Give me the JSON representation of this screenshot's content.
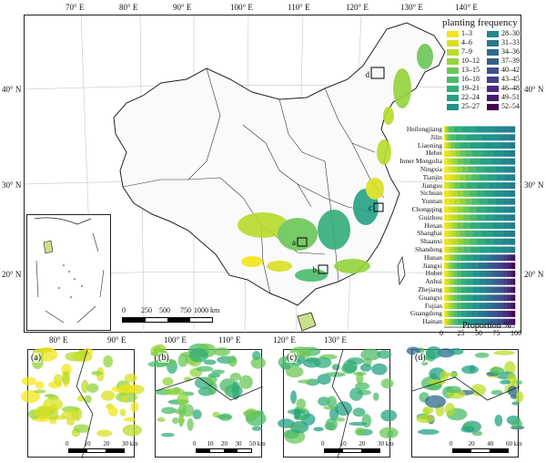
{
  "top_lon_ticks": [
    "70° E",
    "80° E",
    "90° E",
    "100° E",
    "110° E",
    "120° E",
    "130° E",
    "140° E"
  ],
  "bottom_lon_ticks": [
    "80° E",
    "90° E",
    "100° E",
    "110° E",
    "120° E",
    "130° E"
  ],
  "left_lat_ticks": [
    "40° N",
    "30° N",
    "20° N"
  ],
  "right_lat_ticks": [
    "40° N",
    "30° N",
    "20° N"
  ],
  "legend": {
    "title": "planting frequency",
    "items": [
      {
        "label": "1–3",
        "color": "#f3e51a"
      },
      {
        "label": "4–6",
        "color": "#d9e021"
      },
      {
        "label": "7–9",
        "color": "#b8dc2b"
      },
      {
        "label": "10–12",
        "color": "#93d43c"
      },
      {
        "label": "13–15",
        "color": "#6cc756"
      },
      {
        "label": "16–18",
        "color": "#4cbb6a"
      },
      {
        "label": "19–21",
        "color": "#33ad78"
      },
      {
        "label": "22–24",
        "color": "#25a184"
      },
      {
        "label": "25–27",
        "color": "#20928c"
      },
      {
        "label": "28–30",
        "color": "#23858e"
      },
      {
        "label": "31–33",
        "color": "#28788e"
      },
      {
        "label": "34–36",
        "color": "#2e6b8e"
      },
      {
        "label": "37–39",
        "color": "#355e8d"
      },
      {
        "label": "40–42",
        "color": "#3b518b"
      },
      {
        "label": "43–45",
        "color": "#424086"
      },
      {
        "label": "46–48",
        "color": "#472d7b"
      },
      {
        "label": "49–51",
        "color": "#481a6c"
      },
      {
        "label": "52–54",
        "color": "#440154"
      }
    ]
  },
  "chart_data": {
    "type": "bar",
    "orientation": "horizontal-stacked",
    "xlabel": "Proportion %",
    "x_ticks": [
      "0",
      "25",
      "50",
      "75",
      "100"
    ],
    "xlim": [
      0,
      100
    ],
    "categories": [
      "Heilongjiang",
      "Jilin",
      "Liaoning",
      "Hebei",
      "Inner Mongolia",
      "Ningxia",
      "Tianjin",
      "Jiangsu",
      "Sichuan",
      "Yunnan",
      "Chongqing",
      "Guizhou",
      "Henan",
      "Shanghai",
      "Shaanxi",
      "Shandong",
      "Hunan",
      "Jiangxi",
      "Hubei",
      "Anhui",
      "Zhejiang",
      "Guangxi",
      "Fujian",
      "Guangdong",
      "Hainan"
    ],
    "class_colors": [
      "#f3e51a",
      "#d9e021",
      "#b8dc2b",
      "#93d43c",
      "#6cc756",
      "#4cbb6a",
      "#33ad78",
      "#25a184",
      "#20928c",
      "#23858e",
      "#28788e",
      "#2e6b8e",
      "#355e8d",
      "#3b518b",
      "#424086",
      "#472d7b",
      "#481a6c",
      "#440154"
    ],
    "proportions": [
      [
        1,
        1,
        1,
        2,
        3,
        6,
        12,
        20,
        24,
        20,
        10,
        0,
        0,
        0,
        0,
        0,
        0,
        0
      ],
      [
        1,
        1,
        1,
        2,
        4,
        8,
        14,
        22,
        24,
        15,
        8,
        0,
        0,
        0,
        0,
        0,
        0,
        0
      ],
      [
        2,
        2,
        3,
        3,
        5,
        8,
        14,
        20,
        22,
        14,
        7,
        0,
        0,
        0,
        0,
        0,
        0,
        0
      ],
      [
        5,
        5,
        6,
        6,
        8,
        10,
        14,
        16,
        14,
        10,
        6,
        0,
        0,
        0,
        0,
        0,
        0,
        0
      ],
      [
        4,
        4,
        5,
        6,
        8,
        10,
        14,
        16,
        15,
        11,
        7,
        0,
        0,
        0,
        0,
        0,
        0,
        0
      ],
      [
        6,
        6,
        6,
        7,
        9,
        11,
        13,
        14,
        13,
        9,
        6,
        0,
        0,
        0,
        0,
        0,
        0,
        0
      ],
      [
        8,
        7,
        7,
        8,
        9,
        10,
        12,
        13,
        12,
        9,
        5,
        0,
        0,
        0,
        0,
        0,
        0,
        0
      ],
      [
        3,
        3,
        4,
        5,
        7,
        10,
        14,
        18,
        18,
        12,
        6,
        0,
        0,
        0,
        0,
        0,
        0,
        0
      ],
      [
        6,
        6,
        7,
        8,
        9,
        10,
        12,
        13,
        12,
        10,
        7,
        0,
        0,
        0,
        0,
        0,
        0,
        0
      ],
      [
        7,
        7,
        8,
        8,
        9,
        10,
        12,
        12,
        11,
        9,
        7,
        0,
        0,
        0,
        0,
        0,
        0,
        0
      ],
      [
        6,
        6,
        7,
        8,
        9,
        10,
        12,
        13,
        12,
        10,
        7,
        0,
        0,
        0,
        0,
        0,
        0,
        0
      ],
      [
        6,
        6,
        7,
        8,
        9,
        10,
        12,
        13,
        12,
        10,
        7,
        0,
        0,
        0,
        0,
        0,
        0,
        0
      ],
      [
        4,
        4,
        5,
        6,
        8,
        10,
        14,
        17,
        16,
        10,
        6,
        0,
        0,
        0,
        0,
        0,
        0,
        0
      ],
      [
        5,
        5,
        6,
        6,
        8,
        10,
        13,
        16,
        15,
        10,
        6,
        0,
        0,
        0,
        0,
        0,
        0,
        0
      ],
      [
        6,
        6,
        7,
        8,
        9,
        10,
        12,
        13,
        12,
        10,
        7,
        0,
        0,
        0,
        0,
        0,
        0,
        0
      ],
      [
        4,
        4,
        5,
        6,
        8,
        10,
        13,
        16,
        16,
        11,
        7,
        0,
        0,
        0,
        0,
        0,
        0,
        0
      ],
      [
        3,
        3,
        3,
        4,
        5,
        6,
        8,
        9,
        9,
        8,
        7,
        6,
        6,
        6,
        6,
        5,
        3,
        3
      ],
      [
        2,
        2,
        2,
        3,
        4,
        5,
        6,
        7,
        8,
        8,
        8,
        7,
        7,
        7,
        7,
        7,
        5,
        5
      ],
      [
        3,
        3,
        3,
        4,
        5,
        6,
        8,
        9,
        9,
        8,
        7,
        6,
        6,
        6,
        6,
        5,
        3,
        3
      ],
      [
        3,
        3,
        3,
        4,
        5,
        6,
        8,
        9,
        9,
        8,
        7,
        6,
        6,
        6,
        6,
        5,
        3,
        3
      ],
      [
        3,
        3,
        3,
        4,
        5,
        6,
        8,
        9,
        9,
        8,
        7,
        6,
        6,
        6,
        6,
        5,
        3,
        3
      ],
      [
        3,
        3,
        3,
        4,
        5,
        6,
        8,
        9,
        9,
        8,
        7,
        6,
        6,
        6,
        6,
        5,
        3,
        3
      ],
      [
        3,
        3,
        3,
        4,
        5,
        6,
        8,
        9,
        9,
        8,
        7,
        6,
        6,
        6,
        6,
        5,
        3,
        3
      ],
      [
        2,
        2,
        2,
        3,
        4,
        5,
        6,
        7,
        8,
        8,
        8,
        7,
        7,
        7,
        7,
        7,
        5,
        5
      ],
      [
        2,
        2,
        3,
        3,
        4,
        5,
        7,
        8,
        9,
        9,
        8,
        7,
        7,
        7,
        6,
        6,
        4,
        3
      ]
    ]
  },
  "main_scale": {
    "labels": [
      "0",
      "250",
      "500",
      "750",
      "1000 km"
    ]
  },
  "inset_labels": [
    "a",
    "b",
    "c",
    "d"
  ],
  "panels": [
    {
      "label": "(a)",
      "scale": [
        "0",
        "10",
        "20",
        "30 km"
      ]
    },
    {
      "label": "(b)",
      "scale": [
        "0",
        "10",
        "20",
        "30",
        "50 km"
      ]
    },
    {
      "label": "(c)",
      "scale": [
        "0",
        "10",
        "20",
        "30 km"
      ]
    },
    {
      "label": "(d)",
      "scale": [
        "0",
        "20",
        "40",
        "60 km"
      ]
    }
  ]
}
